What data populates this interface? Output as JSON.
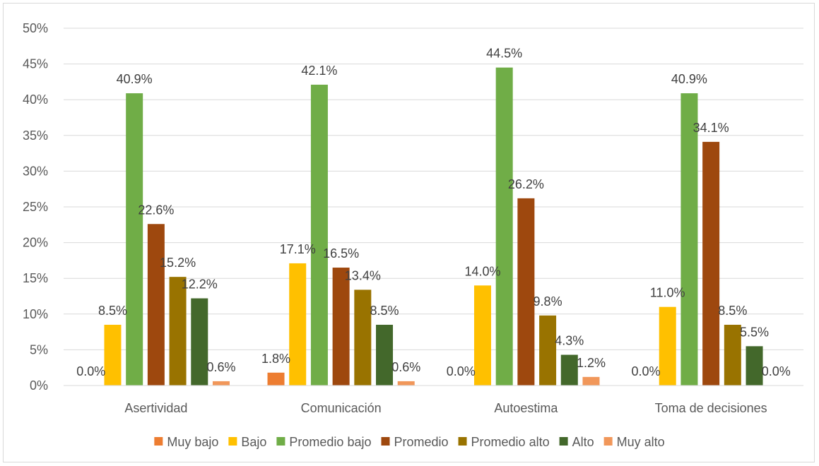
{
  "chart_data": {
    "type": "bar",
    "categories": [
      "Asertividad",
      "Comunicación",
      "Autoestima",
      "Toma de decisiones"
    ],
    "series": [
      {
        "name": "Muy bajo",
        "color": "#ED7D31",
        "values": [
          0.0,
          1.8,
          0.0,
          0.0
        ],
        "labels": [
          "0.0%",
          "1.8%",
          "0.0%",
          "0.0%"
        ]
      },
      {
        "name": "Bajo",
        "color": "#FFC000",
        "values": [
          8.5,
          17.1,
          14.0,
          11.0
        ],
        "labels": [
          "8.5%",
          "17.1%",
          "14.0%",
          "11.0%"
        ]
      },
      {
        "name": "Promedio bajo",
        "color": "#70AD47",
        "values": [
          40.9,
          42.1,
          44.5,
          40.9
        ],
        "labels": [
          "40.9%",
          "42.1%",
          "44.5%",
          "40.9%"
        ]
      },
      {
        "name": "Promedio",
        "color": "#9E480E",
        "values": [
          22.6,
          16.5,
          26.2,
          34.1
        ],
        "labels": [
          "22.6%",
          "16.5%",
          "26.2%",
          "34.1%"
        ]
      },
      {
        "name": "Promedio alto",
        "color": "#997300",
        "values": [
          15.2,
          13.4,
          9.8,
          8.5
        ],
        "labels": [
          "15.2%",
          "13.4%",
          "9.8%",
          "8.5%"
        ]
      },
      {
        "name": "Alto",
        "color": "#43682B",
        "values": [
          12.2,
          8.5,
          4.3,
          5.5
        ],
        "labels": [
          "12.2%",
          "8.5%",
          "4.3%",
          "5.5%"
        ]
      },
      {
        "name": "Muy alto",
        "color": "#F1975A",
        "values": [
          0.6,
          0.6,
          1.2,
          0.0
        ],
        "labels": [
          "0.6%",
          "0.6%",
          "1.2%",
          "0.0%"
        ]
      }
    ],
    "ylim": [
      0,
      50
    ],
    "yticks": [
      0,
      5,
      10,
      15,
      20,
      25,
      30,
      35,
      40,
      45,
      50
    ],
    "ytick_labels": [
      "0%",
      "5%",
      "10%",
      "15%",
      "20%",
      "25%",
      "30%",
      "35%",
      "40%",
      "45%",
      "50%"
    ],
    "grid": true,
    "gridline_color": "#d9d9d9",
    "legend_position": "bottom"
  }
}
